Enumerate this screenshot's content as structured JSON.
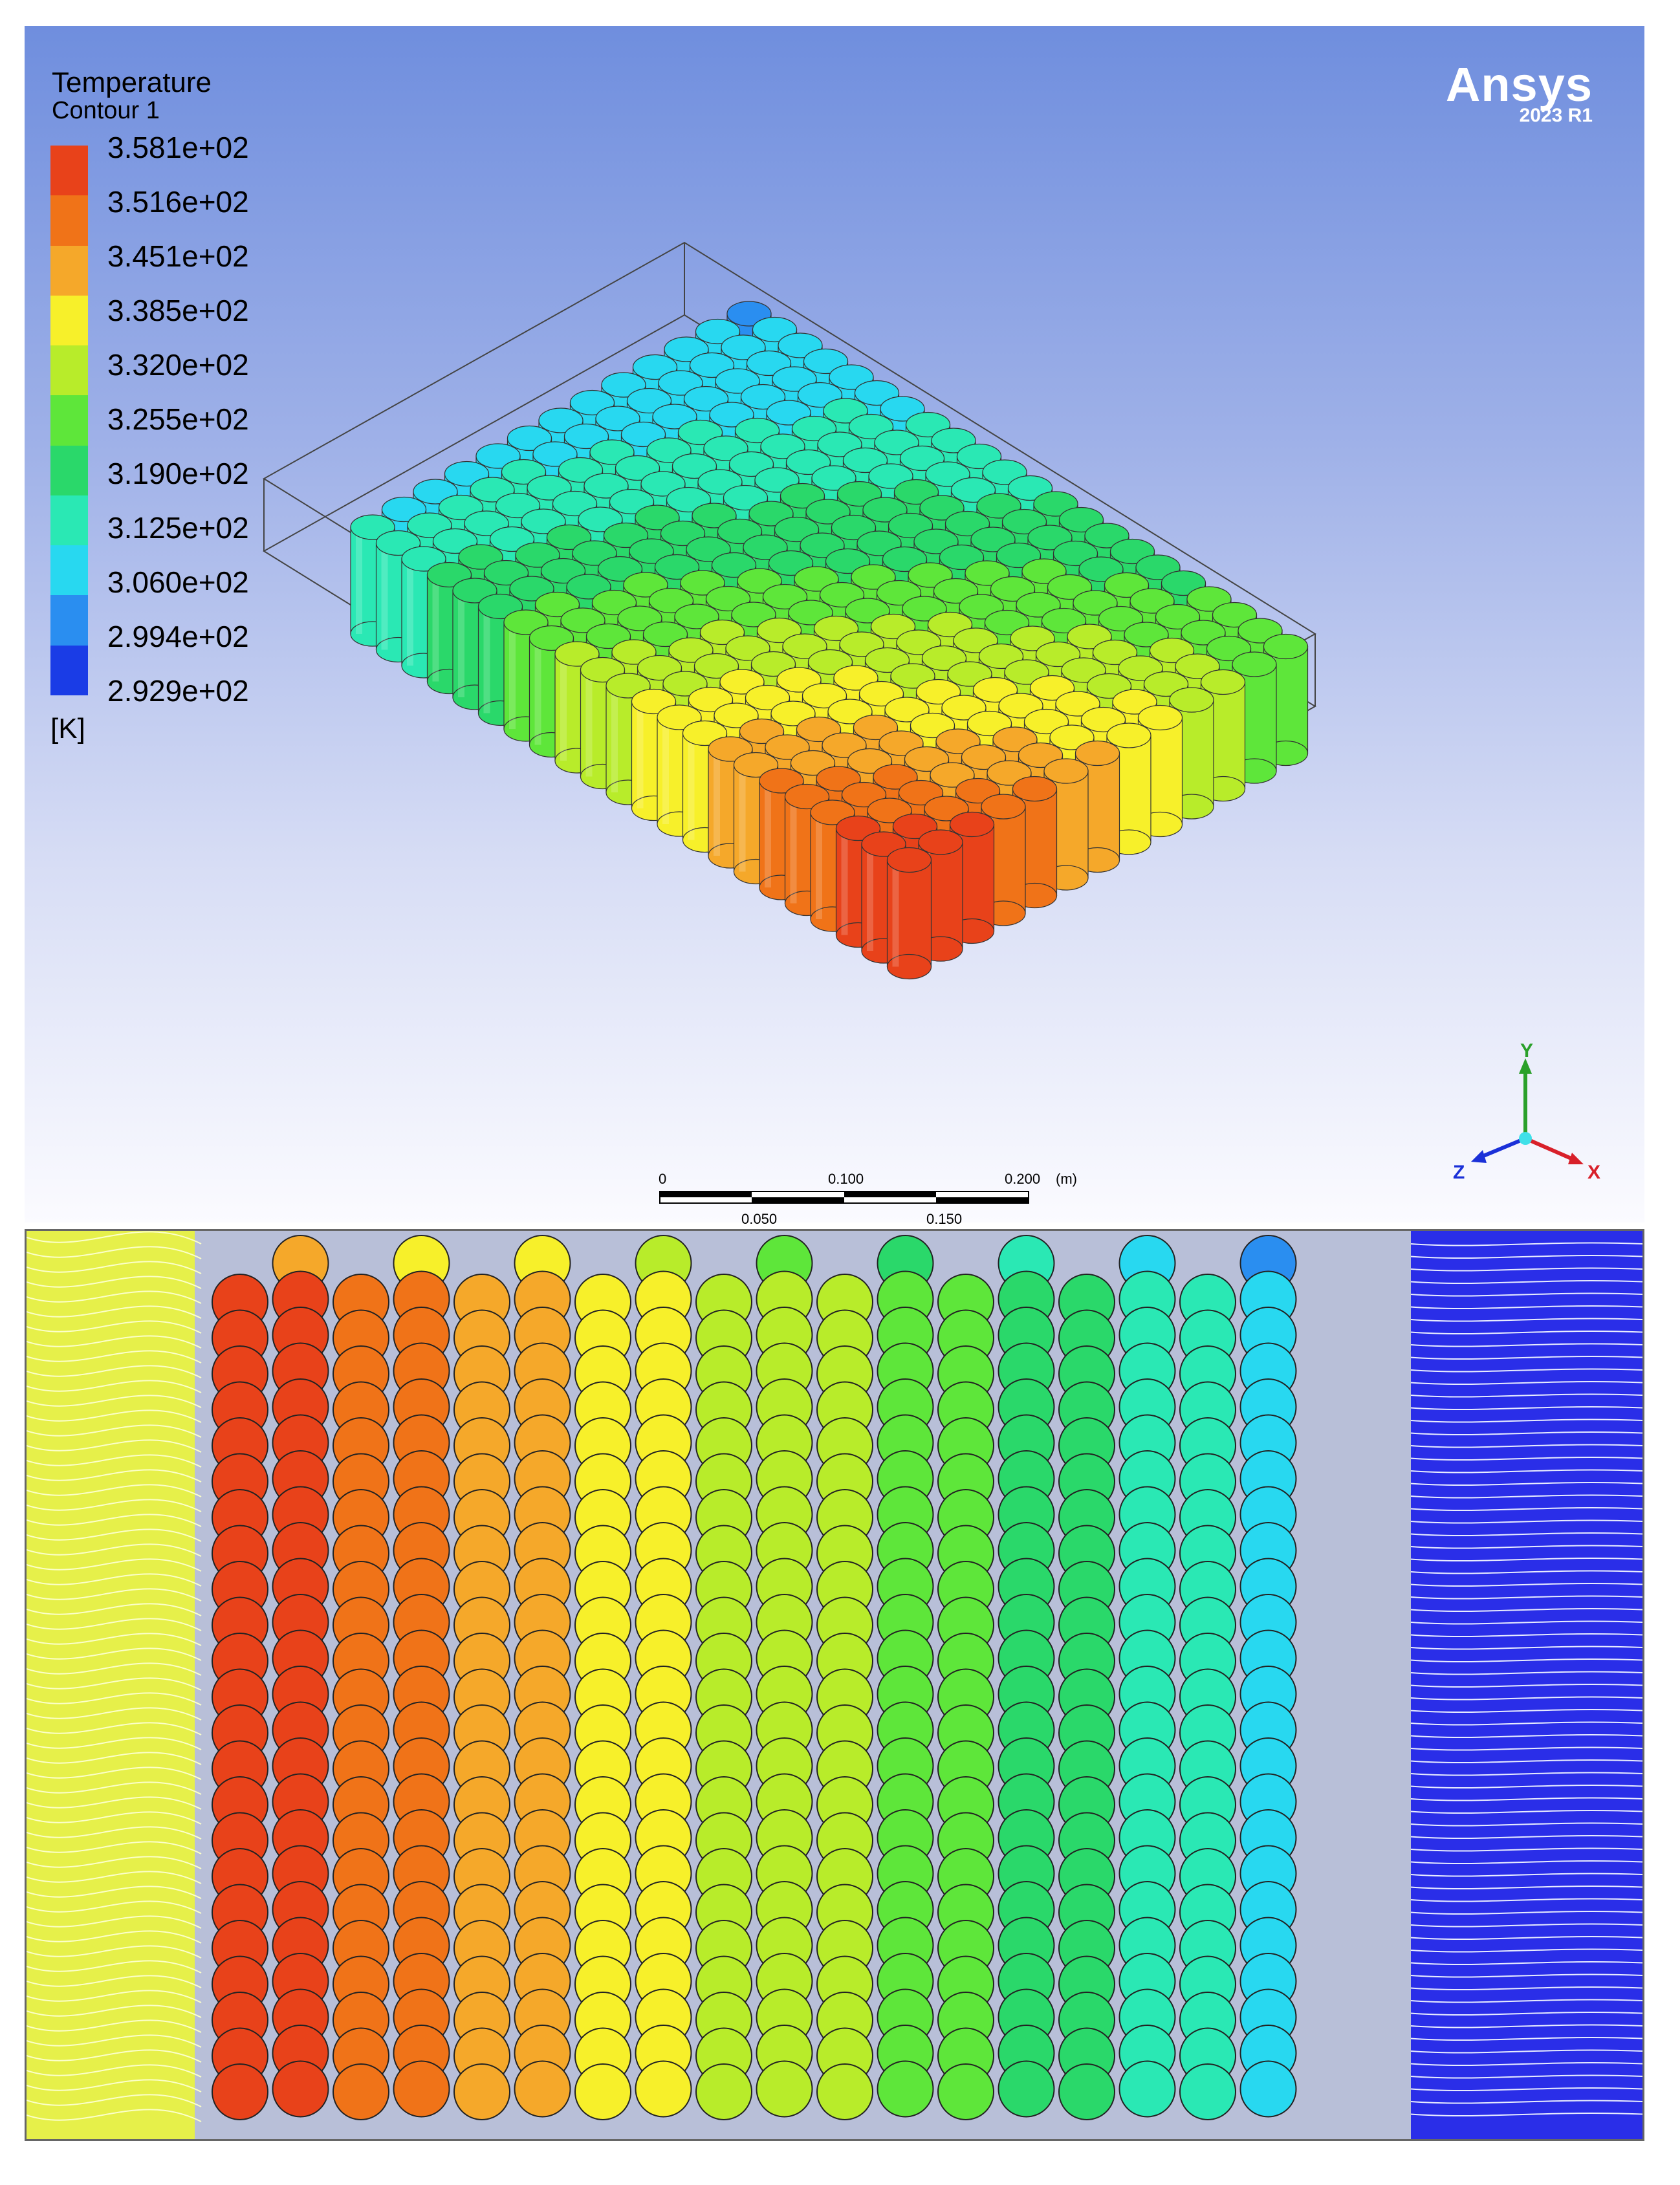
{
  "legend": {
    "title": "Temperature",
    "subtitle": "Contour 1",
    "unit": "[K]",
    "levels": [
      "3.581e+02",
      "3.516e+02",
      "3.451e+02",
      "3.385e+02",
      "3.320e+02",
      "3.255e+02",
      "3.190e+02",
      "3.125e+02",
      "3.060e+02",
      "2.994e+02",
      "2.929e+02"
    ],
    "colors": [
      "#e8421a",
      "#f07318",
      "#f5a82a",
      "#f7f02a",
      "#b8ec2a",
      "#5ee63a",
      "#2ad86a",
      "#2ae8b4",
      "#28d8f0",
      "#2a8ef0",
      "#1a3ce6"
    ]
  },
  "logo": {
    "brand": "Ansys",
    "version": "2023 R1"
  },
  "scale": {
    "upper_labels": [
      "0",
      "0.100",
      "0.200"
    ],
    "lower_labels": [
      "0.050",
      "0.150"
    ],
    "unit": "(m)"
  },
  "triad": {
    "x": "X",
    "y": "Y",
    "z": "Z"
  }
}
